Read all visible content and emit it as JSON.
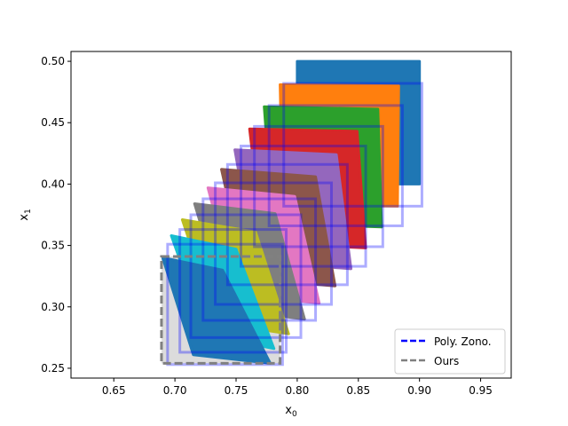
{
  "chart_data": {
    "type": "scatter",
    "title": "",
    "xlabel": "x0",
    "ylabel": "x1",
    "xlim": [
      0.615,
      0.975
    ],
    "ylim": [
      0.242,
      0.508
    ],
    "xticks": [
      0.65,
      0.7,
      0.75,
      0.8,
      0.85,
      0.9,
      0.95
    ],
    "xtick_labels": [
      "0.65",
      "0.70",
      "0.75",
      "0.80",
      "0.85",
      "0.90",
      "0.95"
    ],
    "yticks": [
      0.25,
      0.3,
      0.35,
      0.4,
      0.45,
      0.5
    ],
    "ytick_labels": [
      "0.25",
      "0.30",
      "0.35",
      "0.40",
      "0.45",
      "0.50"
    ],
    "grid": false,
    "legend": {
      "placement": "lower-right",
      "entries": [
        {
          "label": "Poly. Zono.",
          "color": "#0000ff",
          "style": "dashed"
        },
        {
          "label": "Ours",
          "color": "#808080",
          "style": "dashed"
        }
      ]
    },
    "series": [
      {
        "color": "#1f77b4",
        "polygon": [
          [
            0.8,
            0.5
          ],
          [
            0.9,
            0.5
          ],
          [
            0.9,
            0.4
          ],
          [
            0.8,
            0.4
          ]
        ]
      },
      {
        "color": "#ff7f0e",
        "polygon": [
          [
            0.786,
            0.481
          ],
          [
            0.883,
            0.48
          ],
          [
            0.882,
            0.382
          ],
          [
            0.788,
            0.383
          ]
        ]
      },
      {
        "color": "#2ca02c",
        "polygon": [
          [
            0.773,
            0.463
          ],
          [
            0.866,
            0.461
          ],
          [
            0.869,
            0.365
          ],
          [
            0.78,
            0.368
          ]
        ]
      },
      {
        "color": "#d62728",
        "polygon": [
          [
            0.761,
            0.445
          ],
          [
            0.849,
            0.443
          ],
          [
            0.856,
            0.348
          ],
          [
            0.772,
            0.352
          ]
        ]
      },
      {
        "color": "#9467bd",
        "polygon": [
          [
            0.749,
            0.428
          ],
          [
            0.832,
            0.424
          ],
          [
            0.844,
            0.331
          ],
          [
            0.765,
            0.337
          ]
        ]
      },
      {
        "color": "#8c564b",
        "polygon": [
          [
            0.738,
            0.412
          ],
          [
            0.815,
            0.406
          ],
          [
            0.831,
            0.317
          ],
          [
            0.758,
            0.323
          ]
        ]
      },
      {
        "color": "#e377c2",
        "polygon": [
          [
            0.727,
            0.397
          ],
          [
            0.798,
            0.39
          ],
          [
            0.818,
            0.303
          ],
          [
            0.75,
            0.31
          ]
        ]
      },
      {
        "color": "#7f7f7f",
        "polygon": [
          [
            0.716,
            0.384
          ],
          [
            0.782,
            0.376
          ],
          [
            0.806,
            0.29
          ],
          [
            0.742,
            0.298
          ]
        ]
      },
      {
        "color": "#bcbd22",
        "polygon": [
          [
            0.706,
            0.371
          ],
          [
            0.766,
            0.361
          ],
          [
            0.793,
            0.278
          ],
          [
            0.734,
            0.287
          ]
        ]
      },
      {
        "color": "#17becf",
        "polygon": [
          [
            0.697,
            0.358
          ],
          [
            0.75,
            0.347
          ],
          [
            0.781,
            0.266
          ],
          [
            0.726,
            0.277
          ]
        ]
      },
      {
        "color": "#1f77b4",
        "polygon": [
          [
            0.69,
            0.34
          ],
          [
            0.739,
            0.33
          ],
          [
            0.778,
            0.254
          ],
          [
            0.715,
            0.261
          ]
        ]
      }
    ],
    "boxes_poly_zono": [
      [
        0.789,
        0.902,
        0.382,
        0.482
      ],
      [
        0.777,
        0.886,
        0.366,
        0.464
      ],
      [
        0.765,
        0.87,
        0.349,
        0.447
      ],
      [
        0.754,
        0.856,
        0.333,
        0.431
      ],
      [
        0.743,
        0.841,
        0.318,
        0.416
      ],
      [
        0.733,
        0.828,
        0.302,
        0.401
      ],
      [
        0.723,
        0.815,
        0.289,
        0.388
      ],
      [
        0.713,
        0.803,
        0.275,
        0.375
      ],
      [
        0.704,
        0.791,
        0.263,
        0.363
      ],
      [
        0.694,
        0.788,
        0.253,
        0.351
      ]
    ],
    "ours_box": [
      0.689,
      0.786,
      0.254,
      0.341
    ]
  }
}
